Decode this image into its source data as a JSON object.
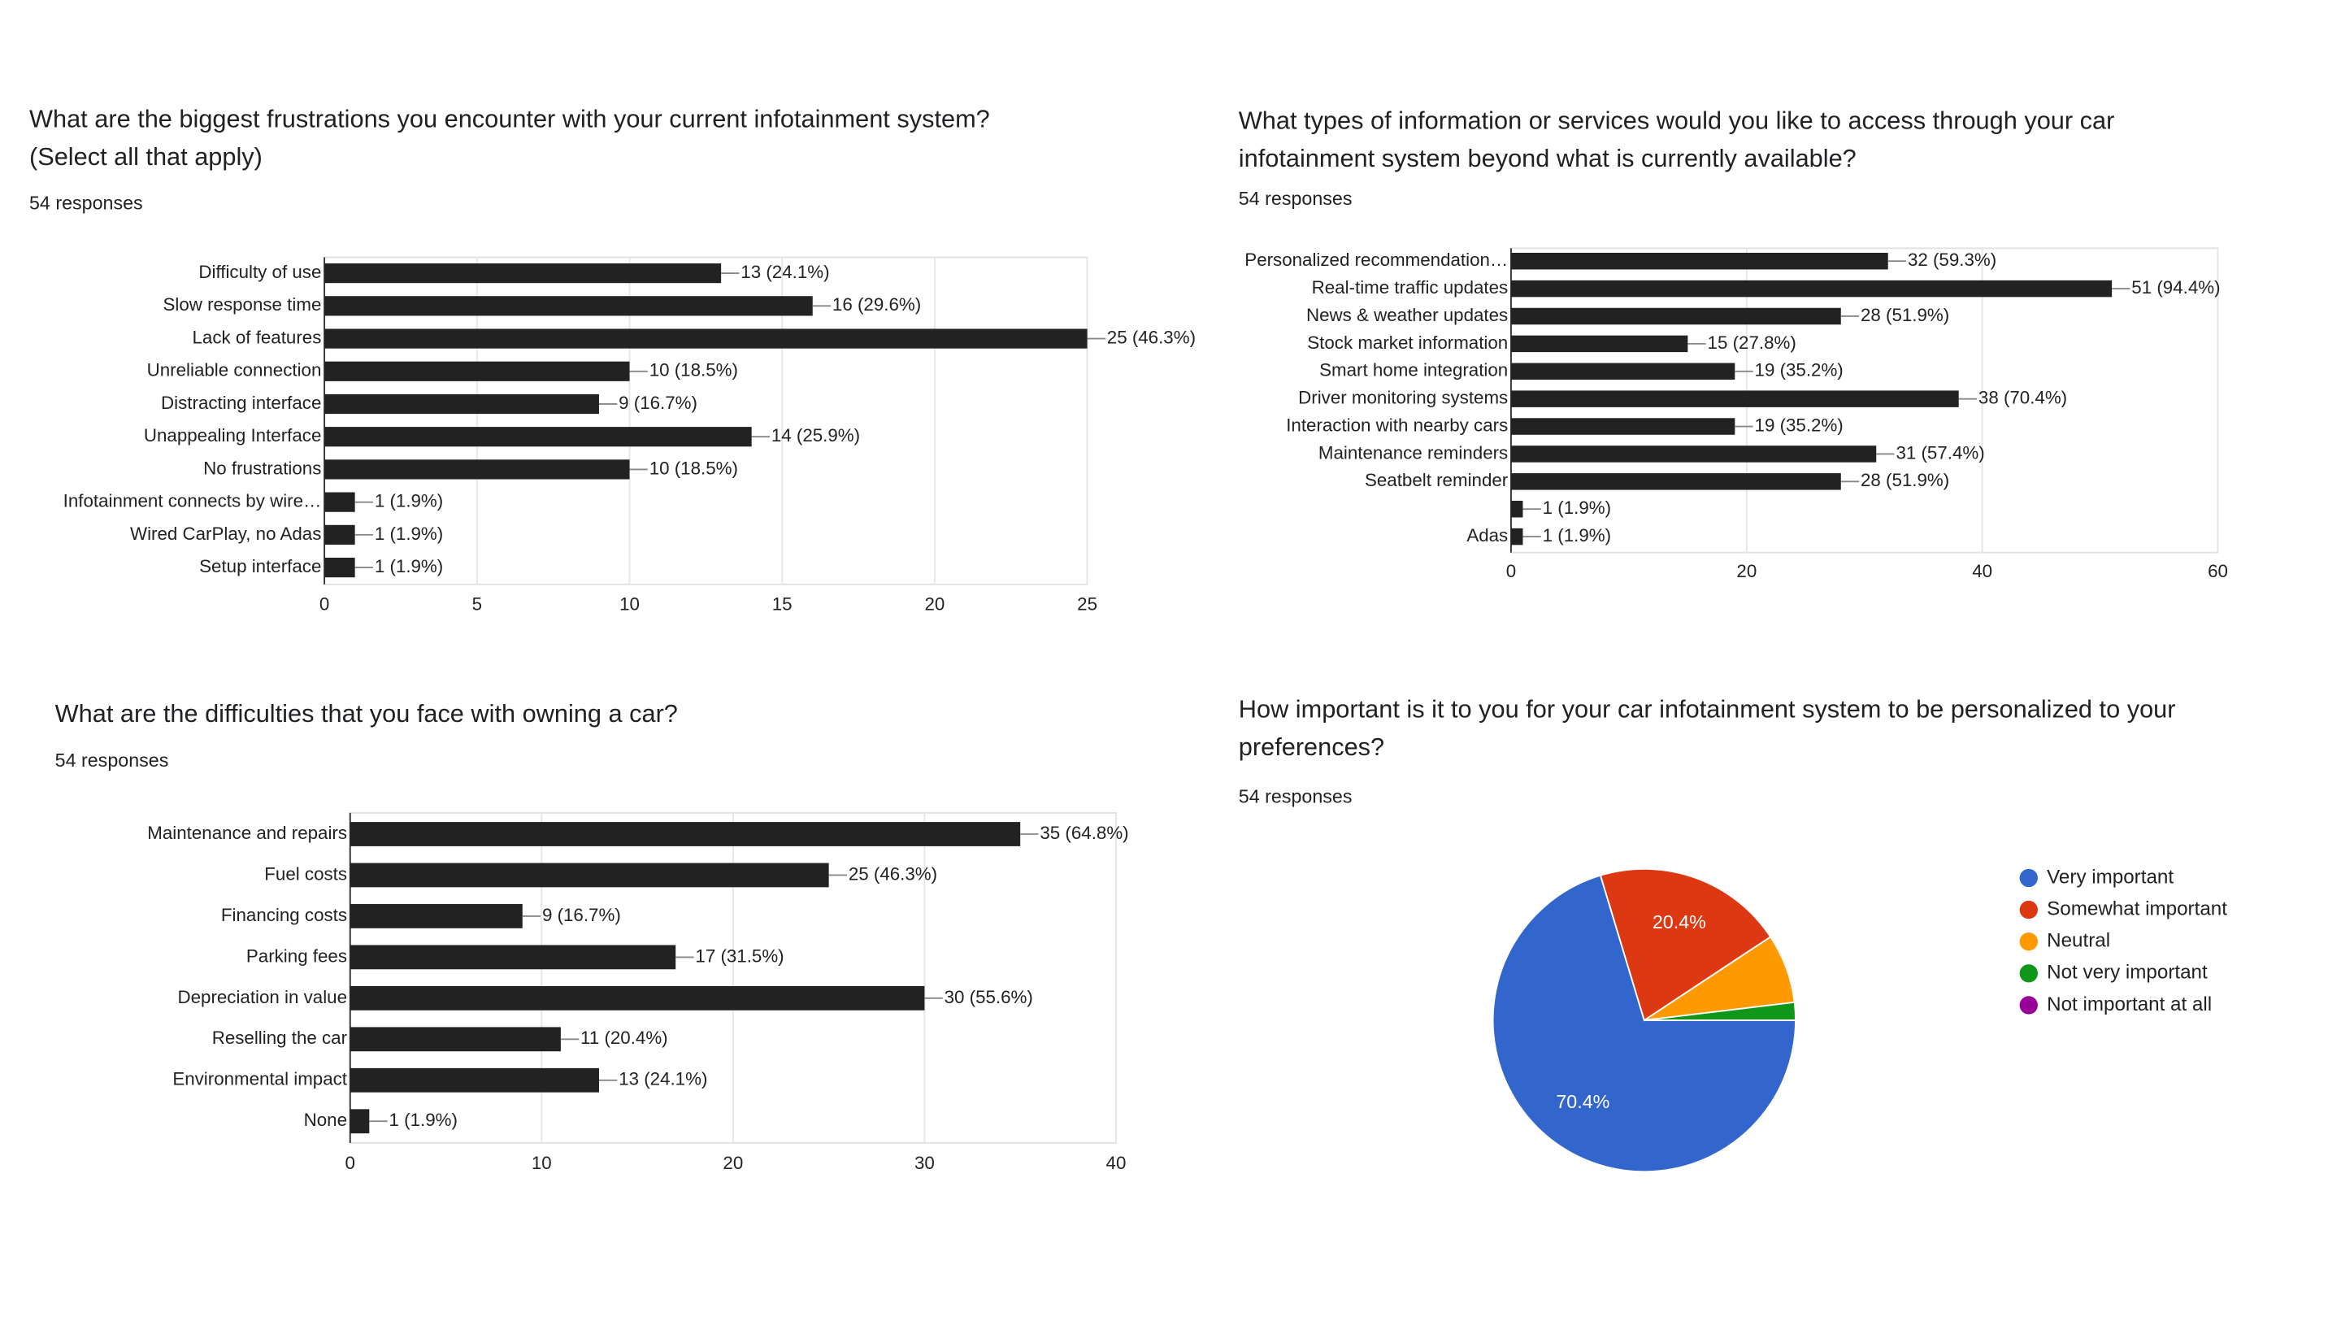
{
  "chart_data": [
    {
      "type": "bar",
      "horizontal": true,
      "title": "What are the biggest frustrations you encounter with your current infotainment system? (Select all that apply)",
      "subtitle": "54 responses",
      "categories": [
        "Difficulty of use",
        "Slow response time",
        "Lack of features",
        "Unreliable connection",
        "Distracting interface",
        "Unappealing Interface",
        "No frustrations",
        "Infotainment connects by wire…",
        "Wired CarPlay, no Adas",
        "Setup interface"
      ],
      "values": [
        13,
        16,
        25,
        10,
        9,
        14,
        10,
        1,
        1,
        1
      ],
      "value_labels": [
        "13 (24.1%)",
        "16 (29.6%)",
        "25 (46.3%)",
        "10 (18.5%)",
        "9 (16.7%)",
        "14 (25.9%)",
        "10 (18.5%)",
        "1 (1.9%)",
        "1 (1.9%)",
        "1 (1.9%)"
      ],
      "color": "#222222",
      "xlim": [
        0,
        25
      ],
      "xticks": [
        0,
        5,
        10,
        15,
        20,
        25
      ],
      "grid": true
    },
    {
      "type": "bar",
      "horizontal": true,
      "title": "What types of information or services would you like to access through your car infotainment system beyond what is currently available?",
      "subtitle": "54 responses",
      "categories": [
        "Personalized recommendation…",
        "Real-time traffic updates",
        "News & weather updates",
        "Stock market information",
        "Smart home integration",
        "Driver monitoring systems",
        "Interaction with nearby cars",
        "Maintenance reminders",
        "Seatbelt reminder",
        null,
        "Adas"
      ],
      "values": [
        32,
        51,
        28,
        15,
        19,
        38,
        19,
        31,
        28,
        1,
        1
      ],
      "value_labels": [
        "32 (59.3%)",
        "51 (94.4%)",
        "28 (51.9%)",
        "15 (27.8%)",
        "19 (35.2%)",
        "38 (70.4%)",
        "19 (35.2%)",
        "31 (57.4%)",
        "28 (51.9%)",
        "1 (1.9%)",
        "1 (1.9%)"
      ],
      "color": "#222222",
      "xlim": [
        0,
        60
      ],
      "xticks": [
        0,
        20,
        40,
        60
      ],
      "grid": true
    },
    {
      "type": "bar",
      "horizontal": true,
      "title": "What are the difficulties that you face with owning a car?",
      "subtitle": "54 responses",
      "categories": [
        "Maintenance and repairs",
        "Fuel costs",
        "Financing costs",
        "Parking fees",
        "Depreciation in value",
        "Reselling the car",
        "Environmental impact",
        "None"
      ],
      "values": [
        35,
        25,
        9,
        17,
        30,
        11,
        13,
        1
      ],
      "value_labels": [
        "35 (64.8%)",
        "25 (46.3%)",
        "9 (16.7%)",
        "17 (31.5%)",
        "30 (55.6%)",
        "11 (20.4%)",
        "13 (24.1%)",
        "1 (1.9%)"
      ],
      "color": "#222222",
      "xlim": [
        0,
        40
      ],
      "xticks": [
        0,
        10,
        20,
        30,
        40
      ],
      "grid": true
    },
    {
      "type": "pie",
      "title": "How important is it to you for your car infotainment system to be personalized to your preferences?",
      "subtitle": "54 responses",
      "categories": [
        "Very important",
        "Somewhat important",
        "Neutral",
        "Not very important",
        "Not important at all"
      ],
      "values": [
        70.4,
        20.4,
        7.4,
        1.9,
        0
      ],
      "value_labels": [
        "70.4%",
        "20.4%",
        null,
        null,
        null
      ],
      "colors": [
        "#3366cc",
        "#dc3912",
        "#ff9900",
        "#109618",
        "#990099"
      ],
      "legend": "right"
    }
  ]
}
